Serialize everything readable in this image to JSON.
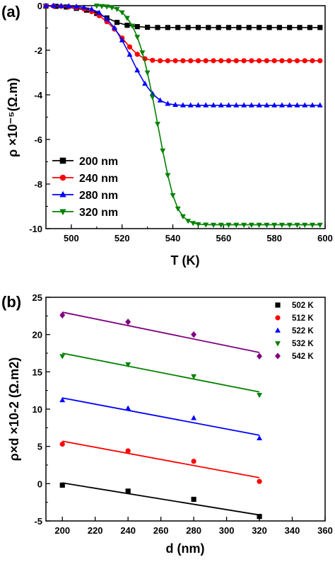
{
  "chart_data": [
    {
      "panel_label": "(a)",
      "type": "line",
      "xlabel": "T (K)",
      "ylabel": "ρ ×10⁻⁵(Ω.m)",
      "xlim": [
        490,
        600
      ],
      "ylim": [
        -10,
        0
      ],
      "xticks": [
        500,
        520,
        540,
        560,
        580,
        600
      ],
      "yticks": [
        -10,
        -8,
        -6,
        -4,
        -2,
        0
      ],
      "grid": false,
      "legend_position": "lower-left",
      "colors": {
        "200 nm": "#000000",
        "240 nm": "#ff0000",
        "280 nm": "#0000ff",
        "320 nm": "#008000"
      },
      "series": [
        {
          "name": "200 nm",
          "marker": "square",
          "color": "#000000",
          "x": [
            490,
            494,
            498,
            502,
            506,
            510,
            514,
            518,
            522,
            526,
            530,
            534,
            538,
            542,
            546,
            550,
            554,
            558,
            562,
            566,
            570,
            574,
            578,
            582,
            586,
            590,
            594,
            598
          ],
          "y": [
            -0.02,
            -0.03,
            -0.06,
            -0.12,
            -0.2,
            -0.35,
            -0.55,
            -0.75,
            -0.88,
            -0.94,
            -0.97,
            -0.98,
            -0.98,
            -0.98,
            -0.98,
            -0.98,
            -0.98,
            -0.98,
            -0.98,
            -0.98,
            -0.98,
            -0.98,
            -0.98,
            -0.98,
            -0.98,
            -0.98,
            -0.98,
            -0.98
          ]
        },
        {
          "name": "240 nm",
          "marker": "circle",
          "color": "#ff0000",
          "x": [
            490,
            493,
            496,
            499,
            502,
            505,
            508,
            511,
            514,
            517,
            520,
            523,
            526,
            529,
            532,
            535,
            538,
            541,
            544,
            547,
            550,
            553,
            556,
            559,
            562,
            565,
            568,
            571,
            574,
            577,
            580,
            583,
            586,
            589,
            592,
            595,
            598
          ],
          "y": [
            -0.01,
            -0.02,
            -0.03,
            -0.05,
            -0.09,
            -0.15,
            -0.27,
            -0.45,
            -0.72,
            -1.05,
            -1.45,
            -1.85,
            -2.18,
            -2.38,
            -2.45,
            -2.47,
            -2.47,
            -2.47,
            -2.47,
            -2.47,
            -2.47,
            -2.47,
            -2.47,
            -2.47,
            -2.47,
            -2.47,
            -2.47,
            -2.47,
            -2.47,
            -2.47,
            -2.47,
            -2.47,
            -2.47,
            -2.47,
            -2.47,
            -2.47,
            -2.47
          ]
        },
        {
          "name": "280 nm",
          "marker": "triangle-up",
          "color": "#0000ff",
          "x": [
            490,
            493,
            496,
            499,
            502,
            505,
            508,
            511,
            514,
            517,
            520,
            523,
            526,
            529,
            532,
            535,
            538,
            541,
            544,
            547,
            550,
            553,
            556,
            559,
            562,
            565,
            568,
            571,
            574,
            577,
            580,
            583,
            586,
            589,
            592,
            595,
            598
          ],
          "y": [
            0,
            0,
            -0.01,
            -0.02,
            -0.04,
            -0.08,
            -0.16,
            -0.32,
            -0.6,
            -1.0,
            -1.55,
            -2.2,
            -2.9,
            -3.5,
            -3.95,
            -4.25,
            -4.4,
            -4.45,
            -4.47,
            -4.47,
            -4.47,
            -4.47,
            -4.47,
            -4.47,
            -4.47,
            -4.47,
            -4.47,
            -4.47,
            -4.47,
            -4.47,
            -4.47,
            -4.47,
            -4.47,
            -4.47,
            -4.47,
            -4.47,
            -4.47
          ]
        },
        {
          "name": "320 nm",
          "marker": "triangle-down",
          "color": "#008000",
          "x": [
            510,
            512,
            514,
            516,
            518,
            520,
            522,
            524,
            526,
            528,
            530,
            532,
            534,
            536,
            538,
            540,
            542,
            544,
            546,
            548,
            550,
            553,
            556,
            559,
            562,
            565,
            568,
            571,
            574,
            577,
            580,
            583,
            586,
            589,
            592,
            595,
            598
          ],
          "y": [
            0,
            -0.02,
            -0.04,
            -0.08,
            -0.15,
            -0.3,
            -0.55,
            -0.9,
            -1.4,
            -2.1,
            -3.0,
            -4.1,
            -5.3,
            -6.5,
            -7.6,
            -8.5,
            -9.1,
            -9.45,
            -9.65,
            -9.75,
            -9.8,
            -9.82,
            -9.83,
            -9.83,
            -9.83,
            -9.83,
            -9.83,
            -9.83,
            -9.83,
            -9.83,
            -9.83,
            -9.83,
            -9.83,
            -9.83,
            -9.83,
            -9.83,
            -9.83
          ]
        }
      ]
    },
    {
      "panel_label": "(b)",
      "type": "scatter",
      "xlabel": "d (nm)",
      "ylabel": "ρ×d ×10-2 (Ω.m2)",
      "xlim": [
        190,
        360
      ],
      "ylim": [
        -5,
        25
      ],
      "xticks": [
        200,
        220,
        240,
        260,
        280,
        300,
        320,
        340,
        360
      ],
      "yticks": [
        -5,
        0,
        5,
        10,
        15,
        20,
        25
      ],
      "grid": false,
      "legend_position": "top-right",
      "colors": {
        "502 K": "#000000",
        "512 K": "#ff0000",
        "522 K": "#0000ff",
        "532 K": "#008000",
        "542 K": "#800080"
      },
      "series": [
        {
          "name": "502 K",
          "marker": "square",
          "color": "#000000",
          "x": [
            200,
            240,
            280,
            320
          ],
          "y": [
            -0.2,
            -1.0,
            -2.1,
            -4.4
          ],
          "fit": [
            0.1,
            -4.2
          ]
        },
        {
          "name": "512 K",
          "marker": "circle",
          "color": "#ff0000",
          "x": [
            200,
            240,
            280,
            320
          ],
          "y": [
            5.3,
            4.4,
            3.0,
            0.3
          ],
          "fit": [
            5.7,
            0.8
          ]
        },
        {
          "name": "522 K",
          "marker": "triangle-up",
          "color": "#0000ff",
          "x": [
            200,
            240,
            280,
            320
          ],
          "y": [
            11.2,
            10.1,
            8.8,
            6.1
          ],
          "fit": [
            11.5,
            6.5
          ]
        },
        {
          "name": "532 K",
          "marker": "triangle-down",
          "color": "#008000",
          "x": [
            200,
            240,
            280,
            320
          ],
          "y": [
            17.1,
            16.0,
            14.4,
            11.9
          ],
          "fit": [
            17.5,
            12.3
          ]
        },
        {
          "name": "542 K",
          "marker": "diamond",
          "color": "#800080",
          "x": [
            200,
            240,
            280,
            320
          ],
          "y": [
            22.6,
            21.7,
            20.0,
            17.1
          ],
          "fit": [
            23.0,
            17.6
          ]
        }
      ]
    }
  ]
}
